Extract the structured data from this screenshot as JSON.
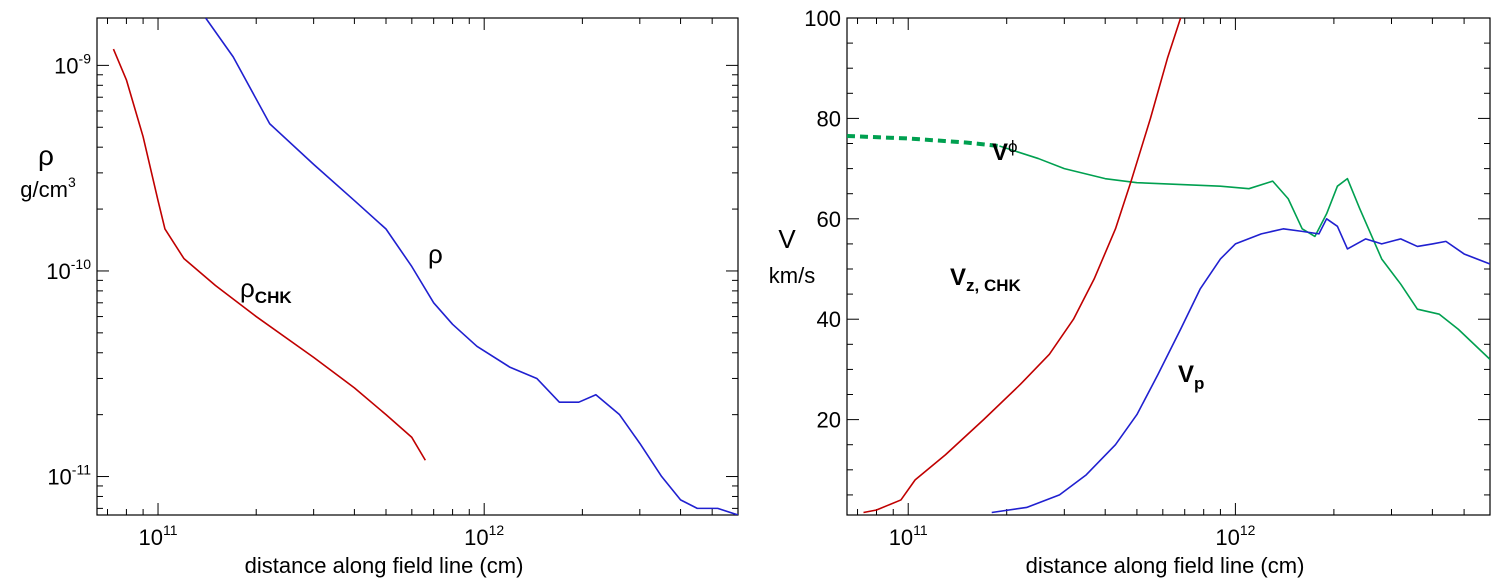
{
  "chart_data": [
    {
      "type": "line",
      "xscale": "log",
      "yscale": "log",
      "xlabel": "distance along field line (cm)",
      "ylabel": "ρ",
      "ylabel_unit": "g/cm",
      "ylabel_unit_exp": "3",
      "xlim": [
        65000000000.0,
        6000000000000.0
      ],
      "ylim": [
        6.5e-12,
        1.7e-09
      ],
      "x_ticks": [
        {
          "value": 100000000000.0,
          "base": "10",
          "exp": "11"
        },
        {
          "value": 1000000000000.0,
          "base": "10",
          "exp": "12"
        }
      ],
      "y_ticks": [
        {
          "value": 1e-09,
          "base": "10",
          "exp": "-9"
        },
        {
          "value": 1e-10,
          "base": "10",
          "exp": "-10"
        },
        {
          "value": 1e-11,
          "base": "10",
          "exp": "-11"
        }
      ],
      "series": [
        {
          "id": "rho",
          "label": "ρ",
          "color": "#2020d0",
          "points": [
            [
              140000000000.0,
              1.7e-09
            ],
            [
              170000000000.0,
              1.1e-09
            ],
            [
              220000000000.0,
              5.2e-10
            ],
            [
              300000000000.0,
              3.3e-10
            ],
            [
              400000000000.0,
              2.2e-10
            ],
            [
              500000000000.0,
              1.6e-10
            ],
            [
              600000000000.0,
              1.05e-10
            ],
            [
              700000000000.0,
              7e-11
            ],
            [
              800000000000.0,
              5.5e-11
            ],
            [
              950000000000.0,
              4.3e-11
            ],
            [
              1200000000000.0,
              3.4e-11
            ],
            [
              1450000000000.0,
              3e-11
            ],
            [
              1700000000000.0,
              2.3e-11
            ],
            [
              1950000000000.0,
              2.3e-11
            ],
            [
              2200000000000.0,
              2.5e-11
            ],
            [
              2600000000000.0,
              2e-11
            ],
            [
              3000000000000.0,
              1.45e-11
            ],
            [
              3500000000000.0,
              1e-11
            ],
            [
              4000000000000.0,
              7.7e-12
            ],
            [
              4500000000000.0,
              7e-12
            ],
            [
              5200000000000.0,
              7e-12
            ],
            [
              6000000000000.0,
              6.5e-12
            ]
          ]
        },
        {
          "id": "rho_chk",
          "label": "ρ",
          "label_sub": "CHK",
          "color": "#c00000",
          "points": [
            [
              73000000000.0,
              1.2e-09
            ],
            [
              80000000000.0,
              8.5e-10
            ],
            [
              90000000000.0,
              4.5e-10
            ],
            [
              100000000000.0,
              2.2e-10
            ],
            [
              105000000000.0,
              1.6e-10
            ],
            [
              120000000000.0,
              1.15e-10
            ],
            [
              150000000000.0,
              8.5e-11
            ],
            [
              200000000000.0,
              6e-11
            ],
            [
              300000000000.0,
              3.8e-11
            ],
            [
              400000000000.0,
              2.7e-11
            ],
            [
              500000000000.0,
              2e-11
            ],
            [
              600000000000.0,
              1.55e-11
            ],
            [
              660000000000.0,
              1.2e-11
            ]
          ]
        }
      ]
    },
    {
      "type": "line",
      "xscale": "log",
      "yscale": "linear",
      "xlabel": "distance along field line (cm)",
      "ylabel": "V",
      "ylabel_unit": "km/s",
      "xlim": [
        65000000000.0,
        6000000000000.0
      ],
      "ylim": [
        1,
        100
      ],
      "x_ticks": [
        {
          "value": 100000000000.0,
          "base": "10",
          "exp": "11"
        },
        {
          "value": 1000000000000.0,
          "base": "10",
          "exp": "12"
        }
      ],
      "y_ticks": [
        {
          "value": 20,
          "label": "20"
        },
        {
          "value": 40,
          "label": "40"
        },
        {
          "value": 60,
          "label": "60"
        },
        {
          "value": 80,
          "label": "80"
        },
        {
          "value": 100,
          "label": "100"
        }
      ],
      "series": [
        {
          "id": "v_phi",
          "label": "V",
          "label_sub": "ϕ",
          "color": "#00a050",
          "dashed_until_x": 190000000000.0,
          "points": [
            [
              65000000000.0,
              76.5
            ],
            [
              100000000000.0,
              76.0
            ],
            [
              150000000000.0,
              75.2
            ],
            [
              190000000000.0,
              74.5
            ],
            [
              250000000000.0,
              72.0
            ],
            [
              300000000000.0,
              70.0
            ],
            [
              400000000000.0,
              68.0
            ],
            [
              500000000000.0,
              67.2
            ],
            [
              700000000000.0,
              66.8
            ],
            [
              900000000000.0,
              66.5
            ],
            [
              1100000000000.0,
              66.0
            ],
            [
              1300000000000.0,
              67.5
            ],
            [
              1450000000000.0,
              64.0
            ],
            [
              1600000000000.0,
              58.0
            ],
            [
              1750000000000.0,
              56.5
            ],
            [
              1900000000000.0,
              61.0
            ],
            [
              2050000000000.0,
              66.5
            ],
            [
              2200000000000.0,
              68.0
            ],
            [
              2400000000000.0,
              62.0
            ],
            [
              2800000000000.0,
              52.0
            ],
            [
              3200000000000.0,
              47.0
            ],
            [
              3600000000000.0,
              42.0
            ],
            [
              4200000000000.0,
              41.0
            ],
            [
              4800000000000.0,
              38.0
            ],
            [
              6000000000000.0,
              32.0
            ]
          ]
        },
        {
          "id": "v_z_chk",
          "label": "V",
          "label_sub": "z, CHK",
          "color": "#c00000",
          "points": [
            [
              73000000000.0,
              1.5
            ],
            [
              80000000000.0,
              2.0
            ],
            [
              95000000000.0,
              4.0
            ],
            [
              105000000000.0,
              8.0
            ],
            [
              130000000000.0,
              13.0
            ],
            [
              170000000000.0,
              20.0
            ],
            [
              220000000000.0,
              27.0
            ],
            [
              270000000000.0,
              33.0
            ],
            [
              320000000000.0,
              40.0
            ],
            [
              370000000000.0,
              48.0
            ],
            [
              430000000000.0,
              58.0
            ],
            [
              480000000000.0,
              67.5
            ],
            [
              550000000000.0,
              80.0
            ],
            [
              620000000000.0,
              92.0
            ],
            [
              680000000000.0,
              100.0
            ]
          ]
        },
        {
          "id": "v_p",
          "label": "V",
          "label_sub": "p",
          "color": "#2020d0",
          "points": [
            [
              180000000000.0,
              1.5
            ],
            [
              230000000000.0,
              2.5
            ],
            [
              290000000000.0,
              5.0
            ],
            [
              350000000000.0,
              9.0
            ],
            [
              430000000000.0,
              15.0
            ],
            [
              500000000000.0,
              21.0
            ],
            [
              580000000000.0,
              29.0
            ],
            [
              680000000000.0,
              38.0
            ],
            [
              780000000000.0,
              46.0
            ],
            [
              900000000000.0,
              52.0
            ],
            [
              1000000000000.0,
              55.0
            ],
            [
              1200000000000.0,
              57.0
            ],
            [
              1400000000000.0,
              58.0
            ],
            [
              1600000000000.0,
              57.5
            ],
            [
              1800000000000.0,
              57.0
            ],
            [
              1900000000000.0,
              60.0
            ],
            [
              2050000000000.0,
              58.5
            ],
            [
              2200000000000.0,
              54.0
            ],
            [
              2500000000000.0,
              56.0
            ],
            [
              2800000000000.0,
              55.0
            ],
            [
              3200000000000.0,
              56.0
            ],
            [
              3600000000000.0,
              54.5
            ],
            [
              4000000000000.0,
              55.0
            ],
            [
              4400000000000.0,
              55.5
            ],
            [
              5000000000000.0,
              53.0
            ],
            [
              6000000000000.0,
              51.0
            ]
          ]
        }
      ]
    }
  ]
}
